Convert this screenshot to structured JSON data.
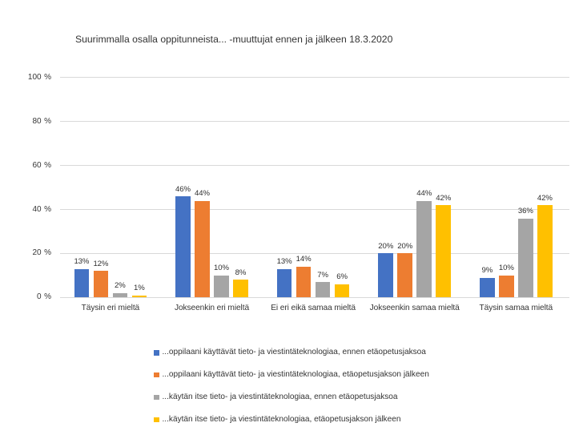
{
  "page": {
    "background": "#ffffff",
    "text_color": "#333333",
    "gridline_color": "#d9d9d9"
  },
  "chart_data": {
    "type": "bar",
    "title": "Suurimmalla osalla oppitunneista... -muuttujat ennen ja jälkeen 18.3.2020",
    "xlabel": "",
    "ylabel": "",
    "categories": [
      "Täysin eri mieltä",
      "Jokseenkin eri mieltä",
      "Ei eri eikä samaa mieltä",
      "Jokseenkin samaa mieltä",
      "Täysin samaa mieltä"
    ],
    "series": [
      {
        "name": "...oppilaani käyttävät tieto- ja viestintäteknologiaa, ennen etäopetusjaksoa",
        "color": "#4472C4",
        "values": [
          13,
          46,
          13,
          20,
          9
        ]
      },
      {
        "name": "...oppilaani käyttävät tieto- ja viestintäteknologiaa, etäopetusjakson jälkeen",
        "color": "#ED7D31",
        "values": [
          12,
          44,
          14,
          20,
          10
        ]
      },
      {
        "name": "...käytän itse tieto- ja viestintäteknologiaa, ennen etäopetusjaksoa",
        "color": "#A5A5A5",
        "values": [
          2,
          10,
          7,
          44,
          36
        ]
      },
      {
        "name": "...käytän itse tieto- ja viestintäteknologiaa, etäopetusjakson jälkeen",
        "color": "#FFC000",
        "values": [
          1,
          8,
          6,
          42,
          42
        ]
      }
    ],
    "data_label_suffix": "%",
    "ylim": [
      0,
      100
    ],
    "yticks": [
      {
        "value": 0,
        "label": "0 %"
      },
      {
        "value": 20,
        "label": "20 %"
      },
      {
        "value": 40,
        "label": "40 %"
      },
      {
        "value": 60,
        "label": "60 %"
      },
      {
        "value": 80,
        "label": "80 %"
      },
      {
        "value": 100,
        "label": "100 %"
      }
    ],
    "grid": true,
    "legend_position": "bottom"
  }
}
